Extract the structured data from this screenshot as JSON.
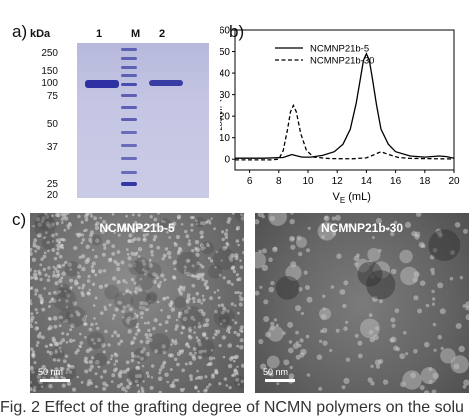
{
  "panel_labels": {
    "a": "a)",
    "b": "b)",
    "c": "c)"
  },
  "gel": {
    "unit_label": "kDa",
    "lanes": [
      "1",
      "M",
      "2"
    ],
    "markers": [
      "250",
      "150",
      "100",
      "75",
      "50",
      "37",
      "25",
      "20"
    ]
  },
  "chart_data": {
    "type": "line",
    "xlabel": "V",
    "xlabel_sub": "E",
    "xlabel_unit": " (mL)",
    "ylabel": "A",
    "ylabel_sub": "280nm",
    "ylabel_unit": " (mAU)",
    "xlim": [
      5,
      20
    ],
    "ylim": [
      -5,
      60
    ],
    "xticks": [
      6,
      8,
      10,
      12,
      14,
      16,
      18,
      20
    ],
    "yticks": [
      0,
      10,
      20,
      30,
      40,
      50,
      60
    ],
    "legend_position": "top-right",
    "grid": false,
    "series": [
      {
        "name": "NCMNP21b-5",
        "style": "solid",
        "x": [
          5,
          7,
          8.3,
          8.6,
          8.9,
          9.2,
          9.6,
          10.2,
          11,
          11.8,
          12.4,
          12.9,
          13.3,
          13.6,
          13.8,
          14.0,
          14.2,
          14.4,
          14.7,
          15.0,
          15.5,
          16,
          17,
          18,
          19,
          19.5,
          20
        ],
        "y": [
          0.5,
          0.5,
          0.8,
          1.5,
          2.2,
          1.6,
          1.0,
          1.0,
          1.8,
          3.5,
          7,
          14,
          26,
          38,
          46,
          49,
          46,
          38,
          25,
          14,
          7,
          3.5,
          1.5,
          1.0,
          1.5,
          1.2,
          0.5
        ]
      },
      {
        "name": "NCMNP21b-30",
        "style": "dashed",
        "x": [
          5,
          7.5,
          8.0,
          8.3,
          8.6,
          8.8,
          9.0,
          9.2,
          9.5,
          9.9,
          10.4,
          11.5,
          13,
          14,
          14.5,
          15.0,
          15.5,
          16.2,
          17,
          18,
          19,
          20
        ],
        "y": [
          -0.3,
          -0.3,
          0,
          4,
          14,
          22,
          25,
          22,
          12,
          4,
          1.0,
          0.3,
          0.2,
          0.6,
          2.0,
          3.5,
          2.2,
          0.8,
          0.4,
          0.3,
          0.2,
          0.1
        ]
      }
    ]
  },
  "tem": {
    "left_title": "NCMNP21b-5",
    "right_title": "NCMNP21b-30",
    "scale_left": "50 nm",
    "scale_right": "50 nm"
  },
  "caption": "Fig. 2   Effect of the grafting degree of NCMN polymers on the solu"
}
